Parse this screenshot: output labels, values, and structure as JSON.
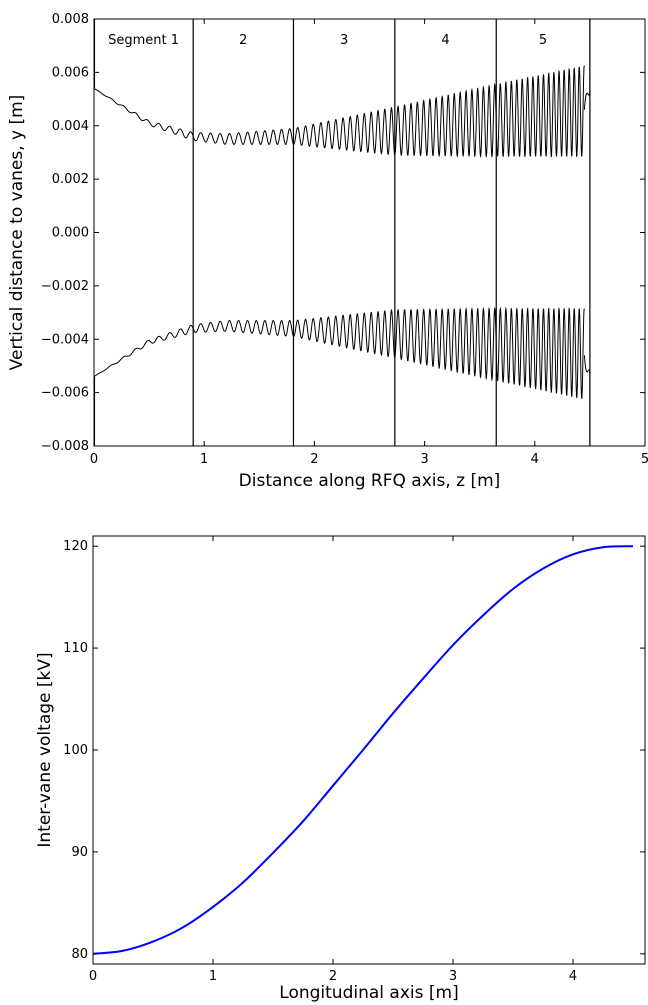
{
  "chart_data": [
    {
      "type": "line",
      "xlabel": "Distance along RFQ axis, z [m]",
      "ylabel": "Vertical distance to vanes, y [m]",
      "xlim": [
        0,
        5
      ],
      "ylim": [
        -0.008,
        0.008
      ],
      "xticks": [
        "0",
        "1",
        "2",
        "3",
        "4",
        "5"
      ],
      "yticks": [
        "−0.008",
        "−0.006",
        "−0.004",
        "−0.002",
        "0.000",
        "0.002",
        "0.004",
        "0.006",
        "0.008"
      ],
      "grid": false,
      "segment_boundaries": [
        0.9,
        1.81,
        2.73,
        3.65,
        4.5
      ],
      "segment_labels": [
        "Segment 1",
        "2",
        "3",
        "4",
        "5"
      ],
      "series": [
        {
          "description_key": "upper",
          "envelope_center": [
            [
              0,
              0.0054
            ],
            [
              0.5,
              0.0041
            ],
            [
              0.9,
              0.0036
            ],
            [
              1.2,
              0.0035
            ],
            [
              1.81,
              0.0036
            ],
            [
              2.73,
              0.0038
            ],
            [
              3.65,
              0.0042
            ],
            [
              4.45,
              0.00455
            ]
          ],
          "envelope_amplitude": [
            [
              0,
              0.0
            ],
            [
              0.9,
              0.00015
            ],
            [
              1.81,
              0.0003
            ],
            [
              2.73,
              0.0009
            ],
            [
              3.65,
              0.00135
            ],
            [
              4.45,
              0.0017
            ]
          ],
          "upper_max": 0.0062,
          "upper_min": 0.0029
        },
        {
          "description_key": "lower",
          "envelope_center": [
            [
              0,
              -0.0054
            ],
            [
              0.5,
              -0.0041
            ],
            [
              0.9,
              -0.0036
            ],
            [
              1.2,
              -0.0035
            ],
            [
              1.81,
              -0.0036
            ],
            [
              2.73,
              -0.0038
            ],
            [
              3.65,
              -0.0042
            ],
            [
              4.45,
              -0.00455
            ]
          ],
          "envelope_amplitude": [
            [
              0,
              0.0
            ],
            [
              0.9,
              0.00015
            ],
            [
              1.81,
              0.0003
            ],
            [
              2.73,
              0.0009
            ],
            [
              3.65,
              0.00135
            ],
            [
              4.45,
              0.0017
            ]
          ],
          "lower_max": -0.0029,
          "lower_min": -0.0062
        }
      ]
    },
    {
      "type": "line",
      "xlabel": "Longitudinal axis [m]",
      "ylabel": "Inter-vane voltage [kV]",
      "xlim": [
        0,
        4.6
      ],
      "ylim": [
        79,
        121
      ],
      "xticks": [
        "0",
        "1",
        "2",
        "3",
        "4"
      ],
      "yticks": [
        "80",
        "90",
        "100",
        "110",
        "120"
      ],
      "grid": false,
      "series": [
        {
          "color": "#0000ff",
          "x": [
            0,
            0.25,
            0.5,
            0.75,
            1.0,
            1.25,
            1.5,
            1.75,
            2.0,
            2.25,
            2.5,
            2.75,
            3.0,
            3.25,
            3.5,
            3.75,
            4.0,
            4.25,
            4.5
          ],
          "y": [
            80.0,
            80.3,
            81.2,
            82.6,
            84.6,
            87.0,
            89.9,
            93.0,
            96.5,
            100.0,
            103.6,
            107.0,
            110.3,
            113.2,
            115.8,
            117.8,
            119.2,
            119.9,
            120.0
          ]
        }
      ]
    }
  ]
}
